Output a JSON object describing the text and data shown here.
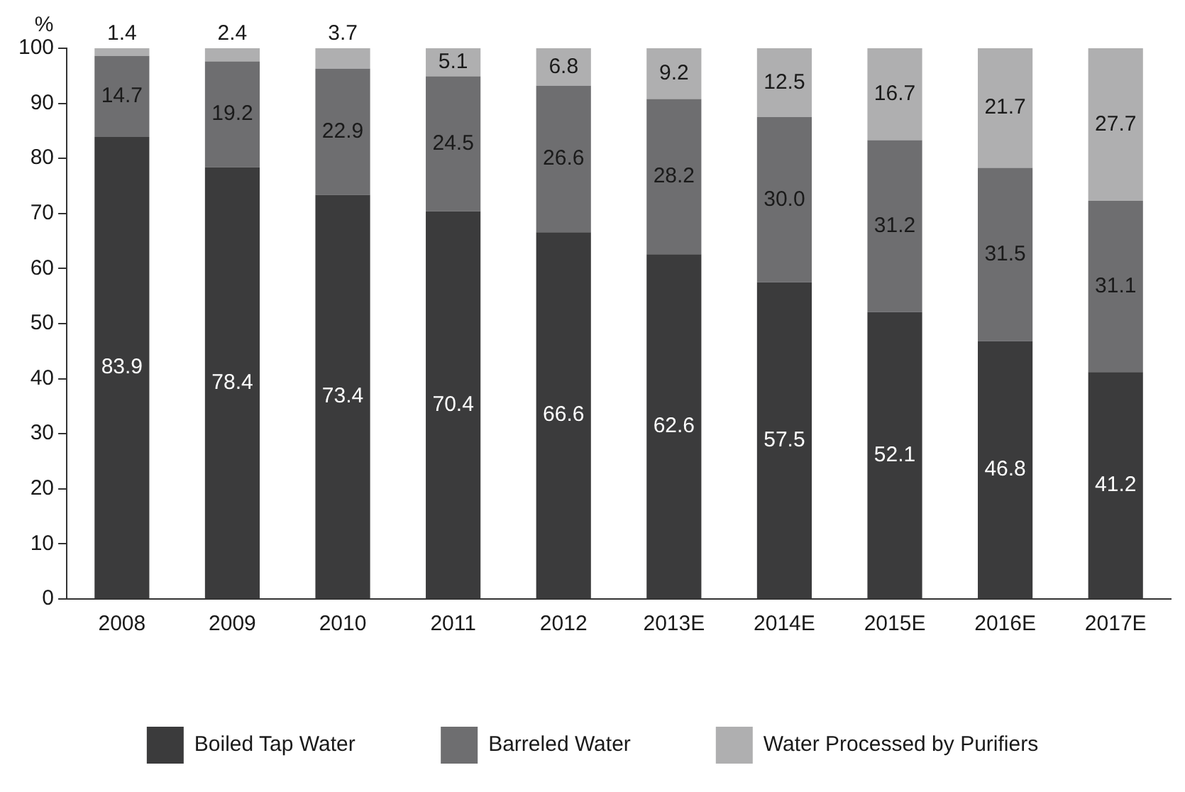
{
  "chart_data": {
    "type": "bar",
    "stacked": true,
    "ylabel": "%",
    "categories": [
      "2008",
      "2009",
      "2010",
      "2011",
      "2012",
      "2013E",
      "2014E",
      "2015E",
      "2016E",
      "2017E"
    ],
    "series": [
      {
        "name": "Boiled Tap Water",
        "color": "#3b3b3c",
        "values": [
          83.9,
          78.4,
          73.4,
          70.4,
          66.6,
          62.6,
          57.5,
          52.1,
          46.8,
          41.2
        ],
        "value_labels": [
          "83.9",
          "78.4",
          "73.4",
          "70.4",
          "66.6",
          "62.6",
          "57.5",
          "52.1",
          "46.8",
          "41.2"
        ]
      },
      {
        "name": "Barreled Water",
        "color": "#6e6e70",
        "values": [
          14.7,
          19.2,
          22.9,
          24.5,
          26.6,
          28.2,
          30.0,
          31.2,
          31.5,
          31.1
        ],
        "value_labels": [
          "14.7",
          "19.2",
          "22.9",
          "24.5",
          "26.6",
          "28.2",
          "30.0",
          "31.2",
          "31.5",
          "31.1"
        ]
      },
      {
        "name": "Water Processed by Purifiers",
        "color": "#afafb0",
        "values": [
          1.4,
          2.4,
          3.7,
          5.1,
          6.8,
          9.2,
          12.5,
          16.7,
          21.7,
          27.7
        ],
        "value_labels": [
          "1.4",
          "2.4",
          "3.7",
          "5.1",
          "6.8",
          "9.2",
          "12.5",
          "16.7",
          "21.7",
          "27.7"
        ]
      }
    ],
    "ylim": [
      0,
      100
    ],
    "yticks": [
      0,
      10,
      20,
      30,
      40,
      50,
      60,
      70,
      80,
      90,
      100
    ],
    "grid": false,
    "legend": "bottom"
  }
}
